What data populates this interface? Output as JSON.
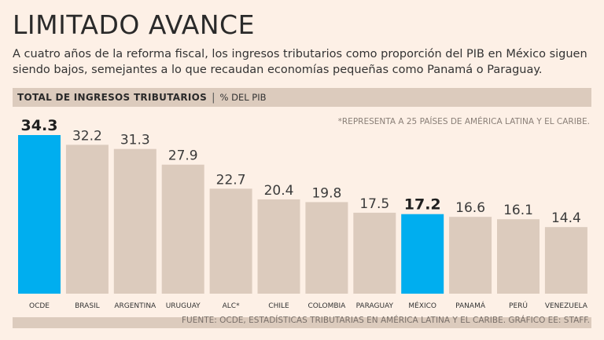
{
  "title": "LIMITADO AVANCE",
  "subtitle": "A cuatro años de la reforma fiscal, los ingresos tributarios como proporción del PIB en México siguen siendo bajos, semejantes a lo que recaudan economías pequeñas como Panamá o Paraguay.",
  "header": {
    "label": "TOTAL DE INGRESOS TRIBUTARIOS",
    "separator": "|",
    "unit": "% DEL PIB"
  },
  "note": "*REPRESENTA A 25 PAÍSES DE AMÉRICA LATINA Y EL CARIBE.",
  "footer": "FUENTE: OCDE, ESTADÍSTICAS TRIBUTARIAS EN AMÉRICA LATINA Y EL CARIBE.  GRÁFICO EE: STAFF.",
  "colors": {
    "highlight": "#00aeef",
    "bar": "#dccbbd",
    "background": "#fdf0e6"
  },
  "chart_data": {
    "type": "bar",
    "title": "TOTAL DE INGRESOS TRIBUTARIOS",
    "ylabel": "% DEL PIB",
    "xlabel": "",
    "ylim": [
      0,
      34.3
    ],
    "categories": [
      "OCDE",
      "BRASIL",
      "ARGENTINA",
      "URUGUAY",
      "ALC*",
      "CHILE",
      "COLOMBIA",
      "PARAGUAY",
      "MÉXICO",
      "PANAMÁ",
      "PERÚ",
      "VENEZUELA"
    ],
    "values": [
      34.3,
      32.2,
      31.3,
      27.9,
      22.7,
      20.4,
      19.8,
      17.5,
      17.2,
      16.6,
      16.1,
      14.4
    ],
    "value_labels": [
      "34.3",
      "32.2",
      "31.3",
      "27.9",
      "22.7",
      "20.4",
      "19.8",
      "17.5",
      "17.2",
      "16.6",
      "16.1",
      "14.4"
    ],
    "highlighted": [
      "OCDE",
      "MÉXICO"
    ]
  }
}
